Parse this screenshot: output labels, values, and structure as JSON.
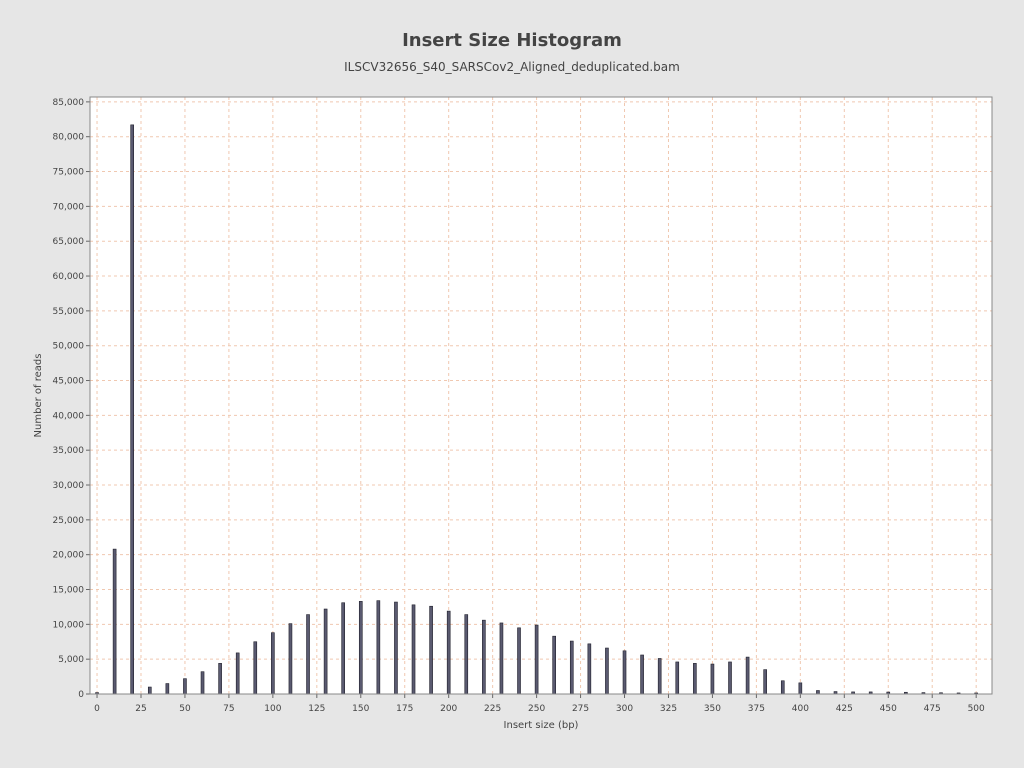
{
  "chart_data": {
    "type": "bar",
    "title": "Insert Size Histogram",
    "subtitle": "ILSCV32656_S40_SARSCov2_Aligned_deduplicated.bam",
    "xlabel": "Insert size (bp)",
    "ylabel": "Number of reads",
    "xlim": [
      -4,
      509
    ],
    "ylim": [
      0,
      85700
    ],
    "x_ticks": [
      0,
      25,
      50,
      75,
      100,
      125,
      150,
      175,
      200,
      225,
      250,
      275,
      300,
      325,
      350,
      375,
      400,
      425,
      450,
      475,
      500
    ],
    "y_ticks": [
      0,
      5000,
      10000,
      15000,
      20000,
      25000,
      30000,
      35000,
      40000,
      45000,
      50000,
      55000,
      60000,
      65000,
      70000,
      75000,
      80000,
      85000
    ],
    "grid": true,
    "colors": {
      "bar_fill": "#5a5a70",
      "bar_stroke": "#1e1e2a",
      "grid": "#f0c8b0",
      "plot_background": "#ffffff",
      "page_background": "#e6e6e6"
    },
    "series": [
      {
        "x": [
          0,
          10,
          20,
          30,
          40,
          50,
          60,
          70,
          80,
          90,
          100,
          110,
          120,
          130,
          140,
          150,
          160,
          170,
          180,
          190,
          200,
          210,
          220,
          230,
          240,
          250,
          260,
          270,
          280,
          290,
          300,
          310,
          320,
          330,
          340,
          350,
          360,
          370,
          380,
          390,
          400,
          410,
          420,
          430,
          440,
          450,
          460,
          470,
          480,
          490,
          500
        ],
        "values": [
          200,
          20800,
          81700,
          1000,
          1500,
          2200,
          3200,
          4400,
          5900,
          7500,
          8800,
          10100,
          11400,
          12200,
          13100,
          13300,
          13400,
          13200,
          12800,
          12600,
          11900,
          11400,
          10600,
          10200,
          9500,
          9900,
          8300,
          7600,
          7200,
          6600,
          6200,
          5600,
          5100,
          4600,
          4400,
          4300,
          4600,
          5300,
          3500,
          1900,
          1600,
          500,
          350,
          300,
          300,
          280,
          250,
          200,
          180,
          150,
          150
        ]
      }
    ]
  }
}
